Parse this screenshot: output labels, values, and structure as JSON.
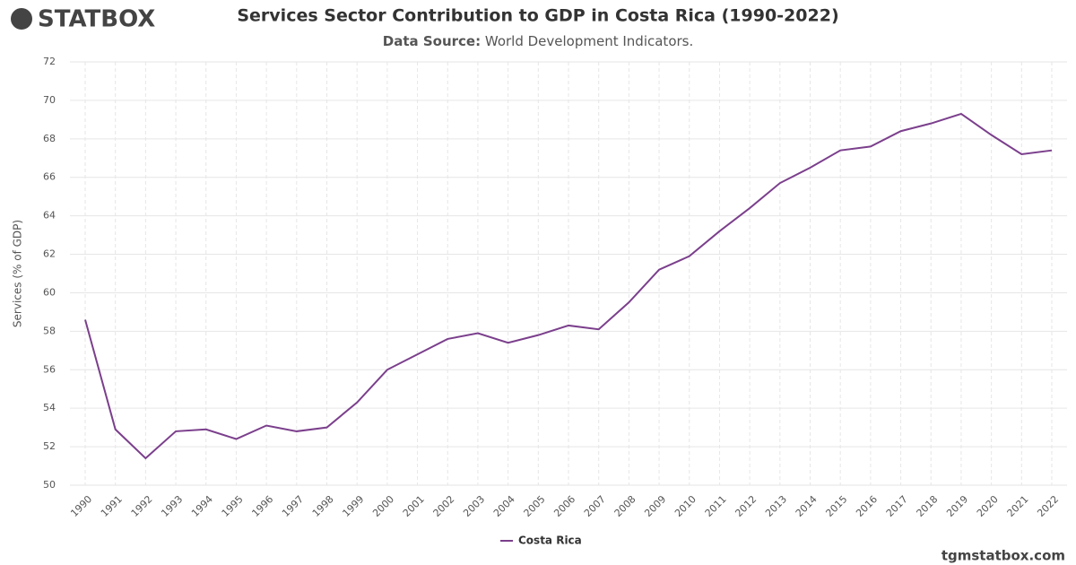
{
  "brand": "STATBOX",
  "footer": "tgmstatbox.com",
  "chart_data": {
    "type": "line",
    "title": "Services Sector Contribution to GDP in Costa Rica (1990-2022)",
    "subtitle_label": "Data Source:",
    "subtitle": "World Development Indicators.",
    "y_label": "Services (% of GDP)",
    "categories": [
      "1990",
      "1991",
      "1992",
      "1993",
      "1994",
      "1995",
      "1996",
      "1997",
      "1998",
      "1999",
      "2000",
      "2001",
      "2002",
      "2003",
      "2004",
      "2005",
      "2006",
      "2007",
      "2008",
      "2009",
      "2010",
      "2011",
      "2012",
      "2013",
      "2014",
      "2015",
      "2016",
      "2017",
      "2018",
      "2019",
      "2020",
      "2021",
      "2022"
    ],
    "series": [
      {
        "name": "Costa Rica",
        "color": "#7b3f8c",
        "values": [
          58.6,
          52.9,
          51.4,
          52.8,
          52.9,
          52.4,
          53.1,
          52.8,
          53.0,
          54.3,
          56.0,
          56.8,
          57.6,
          57.9,
          57.4,
          57.8,
          58.3,
          58.1,
          59.5,
          61.2,
          61.9,
          63.2,
          64.4,
          65.7,
          66.5,
          67.4,
          67.6,
          68.4,
          68.8,
          69.3,
          68.2,
          67.2,
          67.4
        ]
      }
    ],
    "ylim": [
      50,
      72
    ],
    "yticks": [
      50,
      52,
      54,
      56,
      58,
      60,
      62,
      64,
      66,
      68,
      70,
      72
    ],
    "grid": true,
    "legend": "bottom"
  }
}
